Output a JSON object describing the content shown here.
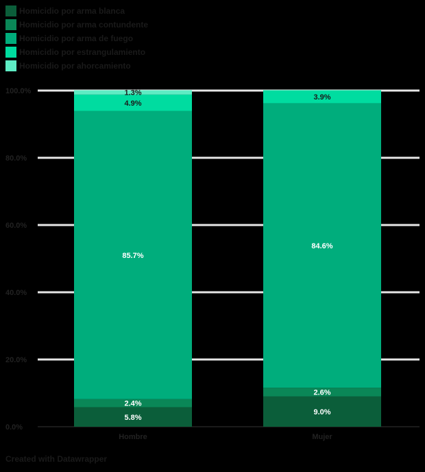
{
  "chart_data": {
    "type": "bar",
    "stacked": true,
    "orientation": "vertical",
    "categories": [
      "Hombre",
      "Mujer"
    ],
    "series": [
      {
        "name": "Homicidio por arma blanca",
        "color": "#0b5e3a",
        "values": [
          5.8,
          9.0
        ]
      },
      {
        "name": "Homicidio por arma contundente",
        "color": "#0a8757",
        "values": [
          2.4,
          2.6
        ]
      },
      {
        "name": "Homicidio por arma de fuego",
        "color": "#00ad7c",
        "values": [
          85.7,
          84.6
        ]
      },
      {
        "name": "Homicidio por estrangulamiento",
        "color": "#00dca0",
        "values": [
          4.9,
          3.9
        ]
      },
      {
        "name": "Homicidio por ahorcamiento",
        "color": "#5eecc4",
        "values": [
          1.3,
          0.0
        ]
      }
    ],
    "data_labels": [
      [
        "5.8%",
        "2.4%",
        "85.7%",
        "4.9%",
        "1.3%"
      ],
      [
        "9.0%",
        "2.6%",
        "84.6%",
        "3.9%",
        ""
      ]
    ],
    "yticks": [
      "0.0%",
      "20.0%",
      "40.0%",
      "60.0%",
      "80.0%",
      "100.0%"
    ],
    "ylim": [
      0,
      100
    ],
    "grid": true,
    "legend_position": "top-left"
  },
  "source": "Created with Datawrapper"
}
